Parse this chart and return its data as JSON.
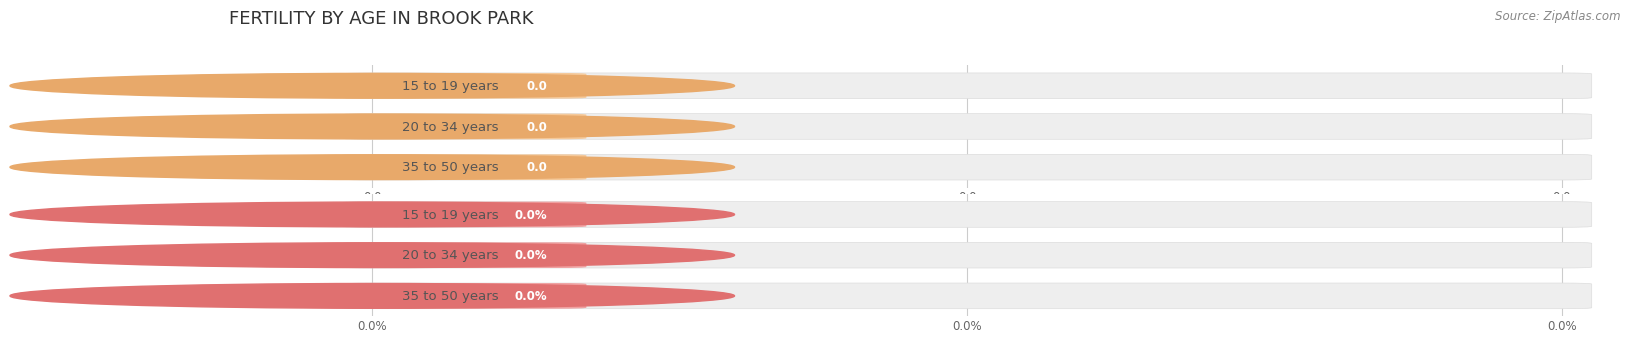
{
  "title": "FERTILITY BY AGE IN BROOK PARK",
  "source_text": "Source: ZipAtlas.com",
  "top_chart": {
    "categories": [
      "15 to 19 years",
      "20 to 34 years",
      "35 to 50 years"
    ],
    "values": [
      0.0,
      0.0,
      0.0
    ],
    "bar_color": "#F5C99A",
    "bar_bg_color": "#EEEEEE",
    "circle_color": "#E8A96A",
    "label_color": "#555555",
    "value_label_color": "#FFFFFF",
    "xlabel_texts": [
      "0.0",
      "0.0",
      "0.0"
    ]
  },
  "bottom_chart": {
    "categories": [
      "15 to 19 years",
      "20 to 34 years",
      "35 to 50 years"
    ],
    "values": [
      0.0,
      0.0,
      0.0
    ],
    "bar_color": "#F0A0A0",
    "bar_bg_color": "#EEEEEE",
    "circle_color": "#E07070",
    "label_color": "#555555",
    "value_label_color": "#FFFFFF",
    "xlabel_texts": [
      "0.0%",
      "0.0%",
      "0.0%"
    ]
  },
  "bg_color": "#FFFFFF",
  "grid_color": "#CCCCCC",
  "title_fontsize": 13,
  "label_fontsize": 9.5,
  "value_fontsize": 8.5,
  "tick_fontsize": 8.5
}
